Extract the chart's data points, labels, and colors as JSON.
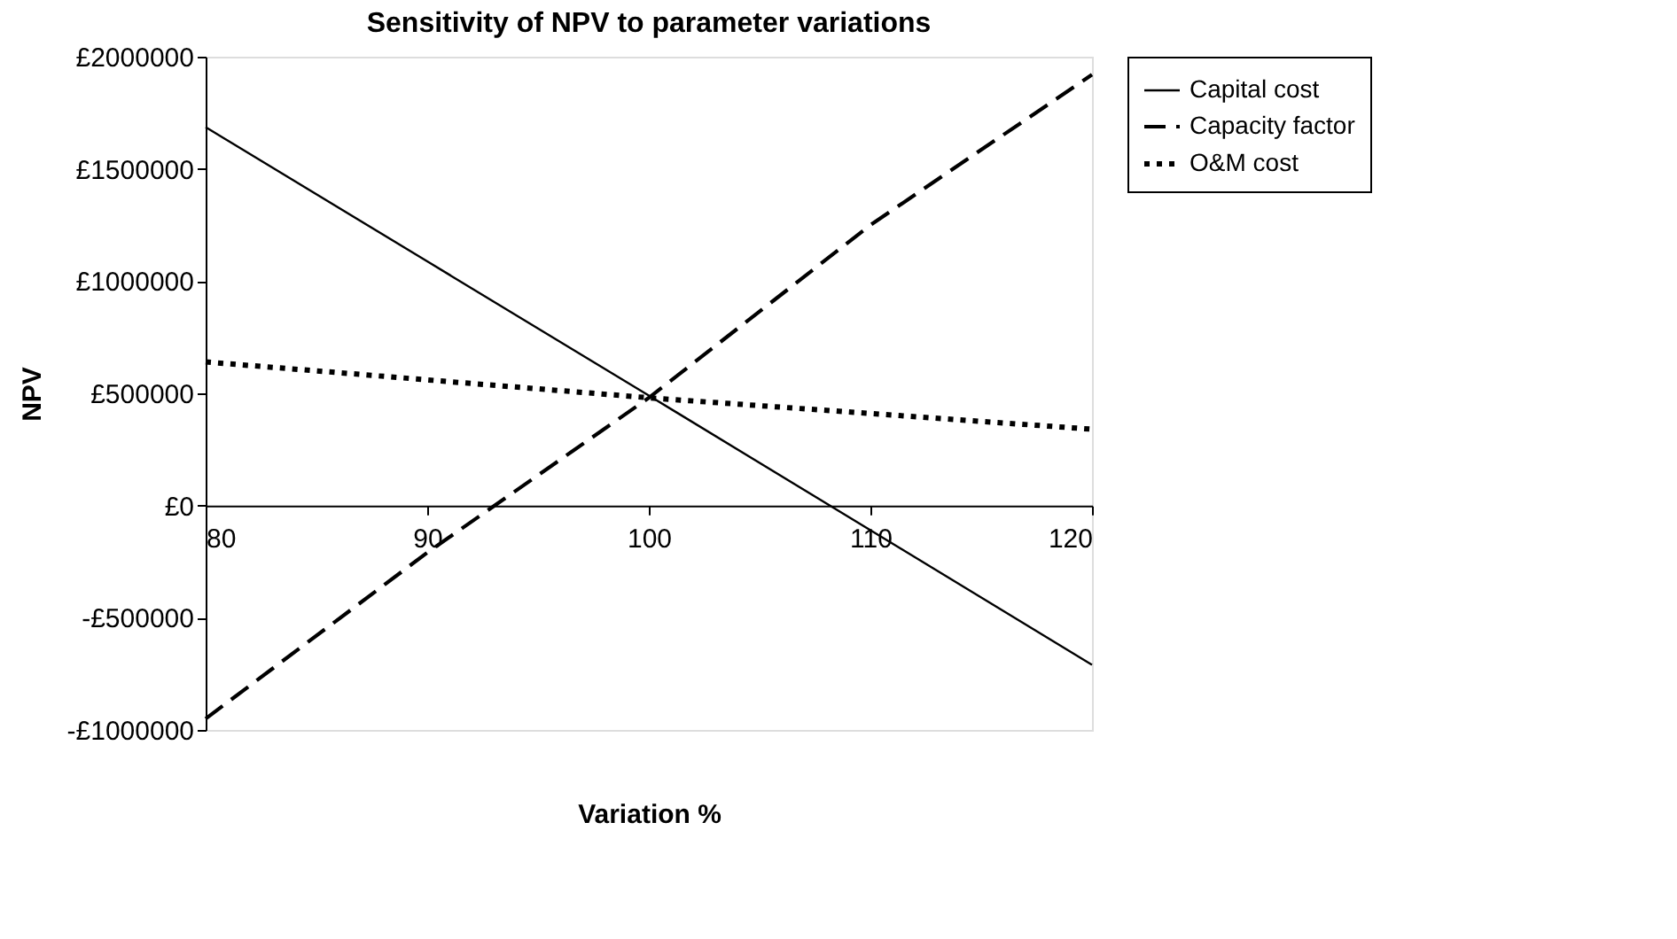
{
  "chart_data": {
    "type": "line",
    "title": "Sensitivity of NPV to parameter variations",
    "xlabel": "Variation %",
    "ylabel": "NPV",
    "x": [
      80,
      90,
      100,
      110,
      120
    ],
    "series": [
      {
        "name": "Capital cost",
        "color": "#000000",
        "line_style": "solid",
        "values": [
          1686000,
          1088000,
          490000,
          -110000,
          -710000
        ]
      },
      {
        "name": "Capacity factor",
        "color": "#000000",
        "line_style": "dashed",
        "values": [
          -950000,
          -210000,
          480000,
          1250000,
          1920000
        ]
      },
      {
        "name": "O&M cost",
        "color": "#000000",
        "line_style": "dotted",
        "values": [
          640000,
          560000,
          480000,
          410000,
          340000
        ]
      }
    ],
    "xlim": [
      80,
      120
    ],
    "xticks": [
      80,
      90,
      100,
      110,
      120
    ],
    "ylim": [
      -1000000,
      2000000
    ],
    "yticks": [
      {
        "value": -1000000,
        "label": "-£1000000"
      },
      {
        "value": -500000,
        "label": "-£500000"
      },
      {
        "value": 0,
        "label": "£0"
      },
      {
        "value": 500000,
        "label": "£500000"
      },
      {
        "value": 1000000,
        "label": "£1000000"
      },
      {
        "value": 1500000,
        "label": "£1500000"
      },
      {
        "value": 2000000,
        "label": "£2000000"
      }
    ],
    "grid": false,
    "legend": "right",
    "marker": "none"
  }
}
